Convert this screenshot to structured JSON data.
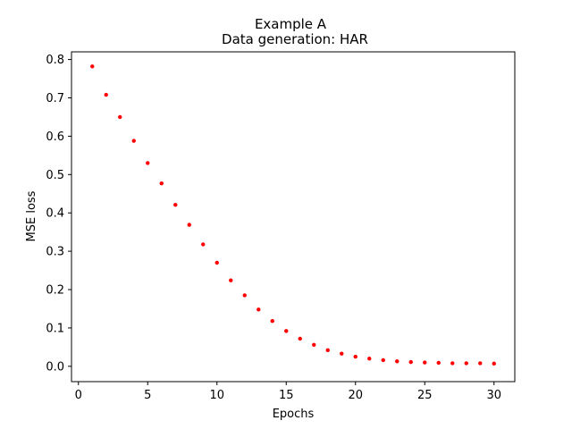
{
  "chart_data": {
    "type": "scatter",
    "title": "Example A",
    "subtitle": "Data generation: HAR",
    "xlabel": "Epochs",
    "ylabel": "MSE loss",
    "xlim": [
      -0.5,
      31.5
    ],
    "ylim": [
      -0.04,
      0.82
    ],
    "xticks": [
      0,
      5,
      10,
      15,
      20,
      25,
      30
    ],
    "yticks": [
      0.0,
      0.1,
      0.2,
      0.3,
      0.4,
      0.5,
      0.6,
      0.7,
      0.8
    ],
    "xtick_labels": [
      "0",
      "5",
      "10",
      "15",
      "20",
      "25",
      "30"
    ],
    "ytick_labels": [
      "0.0",
      "0.1",
      "0.2",
      "0.3",
      "0.4",
      "0.5",
      "0.6",
      "0.7",
      "0.8"
    ],
    "grid": false,
    "marker_color": "#ff0000",
    "series": [
      {
        "x": [
          1,
          2,
          3,
          4,
          5,
          6,
          7,
          8,
          9,
          10,
          11,
          12,
          13,
          14,
          15,
          16,
          17,
          18,
          19,
          20,
          21,
          22,
          23,
          24,
          25,
          26,
          27,
          28,
          29,
          30
        ],
        "values": [
          0.782,
          0.708,
          0.65,
          0.588,
          0.53,
          0.477,
          0.421,
          0.369,
          0.318,
          0.27,
          0.224,
          0.185,
          0.148,
          0.118,
          0.092,
          0.072,
          0.056,
          0.042,
          0.033,
          0.025,
          0.02,
          0.016,
          0.013,
          0.011,
          0.01,
          0.009,
          0.008,
          0.008,
          0.008,
          0.007
        ]
      }
    ]
  }
}
